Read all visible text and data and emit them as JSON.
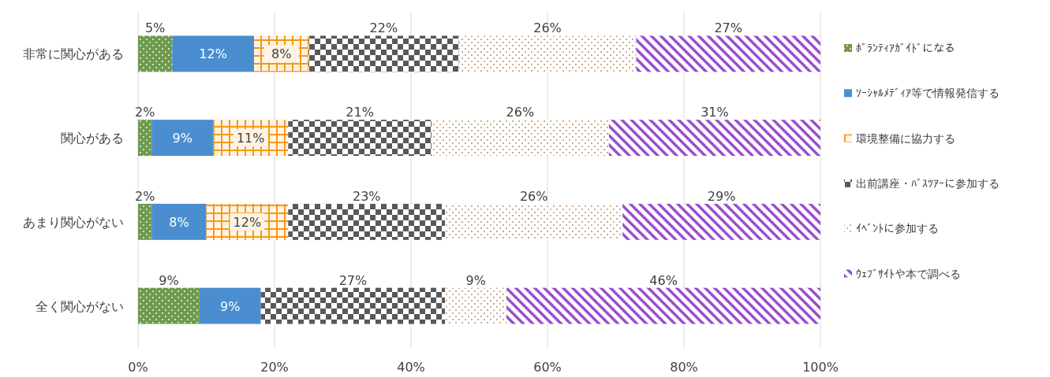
{
  "chart_data": {
    "type": "bar",
    "orientation": "horizontal",
    "stacked": true,
    "categories": [
      "非常に関心がある",
      "関心がある",
      "あまり関心がない",
      "全く関心がない"
    ],
    "xlim": [
      0,
      100
    ],
    "xticks": [
      {
        "value": 0,
        "label": "0%"
      },
      {
        "value": 20,
        "label": "20%"
      },
      {
        "value": 40,
        "label": "40%"
      },
      {
        "value": 60,
        "label": "60%"
      },
      {
        "value": 80,
        "label": "80%"
      },
      {
        "value": 100,
        "label": "100%"
      }
    ],
    "grid": "x",
    "legend": "right",
    "series": [
      {
        "name": "ﾎﾞﾗﾝﾃｨｱｶﾞｲﾄﾞになる",
        "color": "#6e9a4e",
        "values": [
          5,
          2,
          2,
          9
        ],
        "value_labels": [
          "5%",
          "2%",
          "2%",
          "9%"
        ]
      },
      {
        "name": "ｿｰｼｬﾙﾒﾃﾞｨｱ等で情報発信する",
        "color": "#4a8ecf",
        "values": [
          12,
          9,
          8,
          9
        ],
        "value_labels": [
          "12%",
          "9%",
          "8%",
          "9%"
        ]
      },
      {
        "name": "環境整備に協力する",
        "color": "#f39a1c",
        "values": [
          8,
          11,
          12,
          null
        ],
        "value_labels": [
          "8%",
          "11%",
          "12%",
          null
        ]
      },
      {
        "name": "出前講座・ﾊﾞｽﾂｱｰに参加する",
        "color": "#595959",
        "values": [
          22,
          21,
          23,
          27
        ],
        "value_labels": [
          "22%",
          "21%",
          "23%",
          "27%"
        ]
      },
      {
        "name": "ｲﾍﾞﾝﾄに参加する",
        "color": "#b8875a",
        "values": [
          26,
          26,
          26,
          9
        ],
        "value_labels": [
          "26%",
          "26%",
          "26%",
          "9%"
        ]
      },
      {
        "name": "ｳｪﾌﾞｻｲﾄや本で調べる",
        "color": "#9a4fcf",
        "values": [
          27,
          31,
          29,
          46
        ],
        "value_labels": [
          "27%",
          "31%",
          "29%",
          "46%"
        ]
      }
    ]
  }
}
